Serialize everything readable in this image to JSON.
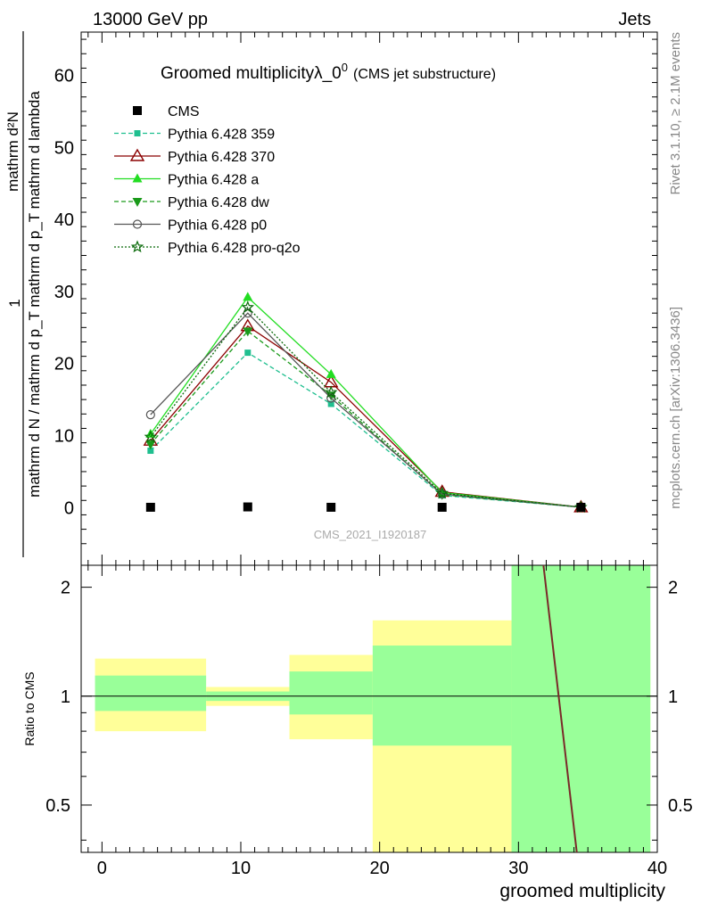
{
  "header": {
    "left": "13000 GeV pp",
    "right": "Jets"
  },
  "side": {
    "top": "Rivet 3.1.10, ≥ 2.1M events",
    "bottom": "mcplots.cern.ch [arXiv:1306.3436]"
  },
  "chart_data": {
    "type": "line",
    "title": "Groomed multiplicityλ_0",
    "title_sup": "0",
    "subtitle": "(CMS jet substructure)",
    "analysis_label": "CMS_2021_I1920187",
    "ylabel_num": "mathrm d²N",
    "ylabel_den": "mathrm d N / mathrm d p_T mathrm d p_T mathrm d lambda",
    "ylabel_prefix": "1",
    "xlabel": "groomed multiplicity",
    "ratio_ylabel": "Ratio to CMS",
    "xlim": [
      -1.5,
      40
    ],
    "ylim": [
      -8,
      66
    ],
    "ratio_ylim": [
      0.37,
      2.3
    ],
    "x_ticks": [
      "0",
      "10",
      "20",
      "30",
      "40"
    ],
    "y_ticks": [
      "0",
      "10",
      "20",
      "30",
      "40",
      "50",
      "60"
    ],
    "ratio_ticks": [
      "0.5",
      "1",
      "2"
    ],
    "legend_position": "top-left",
    "bins": [
      {
        "lo": -0.5,
        "hi": 7.5
      },
      {
        "lo": 7.5,
        "hi": 13.5
      },
      {
        "lo": 13.5,
        "hi": 19.5
      },
      {
        "lo": 19.5,
        "hi": 29.5
      },
      {
        "lo": 29.5,
        "hi": 39.5
      }
    ],
    "x": [
      3.5,
      10.5,
      16.5,
      24.5,
      34.5
    ],
    "data": {
      "name": "CMS",
      "values": [
        0.05,
        0.1,
        0.05,
        0.05,
        0.05
      ]
    },
    "series": [
      {
        "name": "Pythia 6.428 359",
        "values": [
          7.9,
          21.5,
          14.4,
          1.7,
          0.05
        ],
        "color": "#1fbf8f",
        "marker": "square-small",
        "dash": "dashed"
      },
      {
        "name": "Pythia 6.428 370",
        "values": [
          9.3,
          25.2,
          17.4,
          2.2,
          0.05
        ],
        "color": "#8b0000",
        "marker": "triangle-open",
        "dash": "solid"
      },
      {
        "name": "Pythia 6.428 a",
        "values": [
          10.2,
          29.2,
          18.5,
          2.1,
          0.05
        ],
        "color": "#22dd22",
        "marker": "triangle",
        "dash": "solid"
      },
      {
        "name": "Pythia 6.428 dw",
        "values": [
          8.8,
          24.5,
          15.6,
          1.8,
          0.05
        ],
        "color": "#1a9a1a",
        "marker": "triangle-down",
        "dash": "dashed"
      },
      {
        "name": "Pythia 6.428 p0",
        "values": [
          12.9,
          27.0,
          15.2,
          1.9,
          0.05
        ],
        "color": "#555555",
        "marker": "circle-open",
        "dash": "solid"
      },
      {
        "name": "Pythia 6.428 pro-q2o",
        "values": [
          9.8,
          27.8,
          16.0,
          2.0,
          0.05
        ],
        "color": "#0a6a0a",
        "marker": "star",
        "dash": "dotted"
      }
    ],
    "ratio_bands": {
      "stat": [
        [
          0.91,
          1.14
        ],
        [
          0.97,
          1.03
        ],
        [
          0.89,
          1.17
        ],
        [
          0.73,
          1.38
        ],
        [
          0.3,
          2.5
        ]
      ],
      "total": [
        [
          0.8,
          1.27
        ],
        [
          0.94,
          1.06
        ],
        [
          0.76,
          1.3
        ],
        [
          0.3,
          1.62
        ],
        [
          0.3,
          1.62
        ]
      ]
    },
    "ratio_line": {
      "x": [
        31.8,
        34.2
      ],
      "y": [
        2.3,
        0.37
      ],
      "color": "#7a2a2a"
    }
  }
}
